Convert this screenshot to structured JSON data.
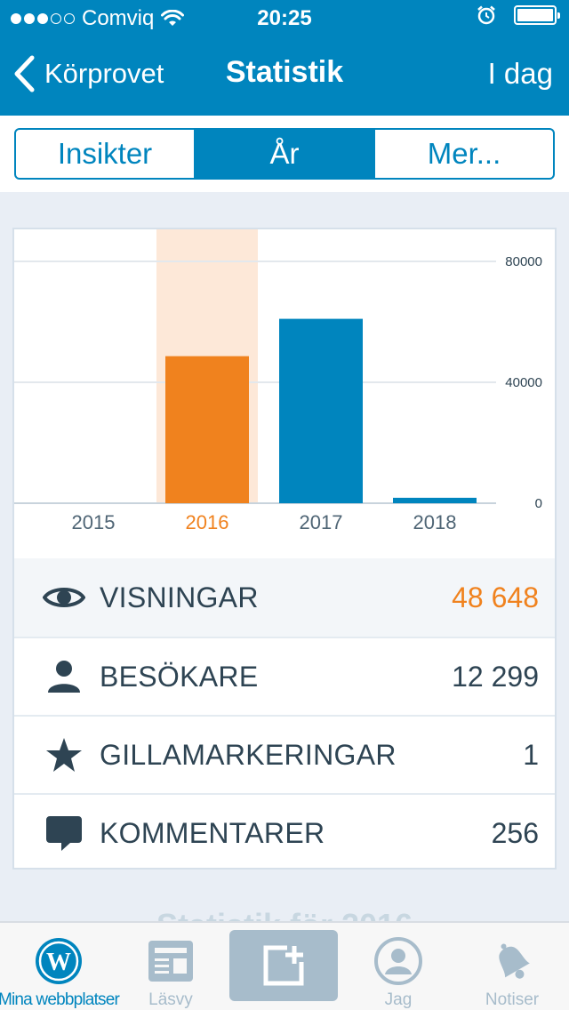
{
  "status_bar": {
    "carrier": "Comviq",
    "time": "20:25"
  },
  "nav": {
    "back_label": "Körprovet",
    "title": "Statistik",
    "right_label": "I dag"
  },
  "segments": {
    "items": [
      "Insikter",
      "År",
      "Mer..."
    ],
    "selected": "År"
  },
  "chart_data": {
    "type": "bar",
    "categories": [
      "2015",
      "2016",
      "2017",
      "2018"
    ],
    "values": [
      0,
      48648,
      61000,
      1800
    ],
    "highlighted_category": "2016",
    "ylim": [
      0,
      80000
    ],
    "yticks": [
      "80000",
      "40000",
      "0"
    ],
    "grid": true,
    "colors": {
      "bar": "#0085be",
      "highlight_bar": "#f0821e",
      "highlight_band": "#fde8d8"
    }
  },
  "stats": [
    {
      "icon": "eye-icon",
      "label": "VISNINGAR",
      "value": "48 648",
      "highlight": true
    },
    {
      "icon": "person-icon",
      "label": "BESÖKARE",
      "value": "12 299",
      "highlight": false
    },
    {
      "icon": "star-icon",
      "label": "GILLAMARKERINGAR",
      "value": "1",
      "highlight": false
    },
    {
      "icon": "comment-icon",
      "label": "KOMMENTARER",
      "value": "256",
      "highlight": false
    }
  ],
  "peek_text": "Statistik för 2016",
  "tabbar": {
    "my_sites": "Mina webbplatser",
    "reader": "Läsvy",
    "me": "Jag",
    "notifications": "Notiser"
  },
  "colors": {
    "brand_blue": "#0085be",
    "accent_orange": "#f0821e",
    "text_dark": "#2e4453",
    "inactive_gray": "#a7bccb"
  }
}
